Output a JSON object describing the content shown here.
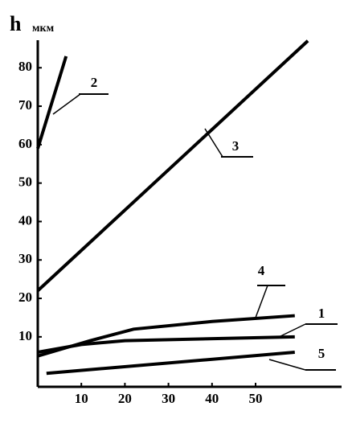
{
  "chart_data": {
    "type": "line",
    "y_label": "h",
    "y_unit": "мкм",
    "xlim": [
      0,
      69
    ],
    "ylim": [
      -3,
      88
    ],
    "xticks": [
      10,
      20,
      30,
      40,
      50
    ],
    "yticks": [
      10,
      20,
      30,
      40,
      50,
      60,
      70,
      80
    ],
    "series": [
      {
        "name": "1",
        "color": "#000000",
        "x": [
          0,
          10,
          20,
          59
        ],
        "values": [
          6,
          8,
          9,
          10
        ]
      },
      {
        "name": "2",
        "color": "#000000",
        "x": [
          0,
          6.5
        ],
        "values": [
          59,
          83
        ]
      },
      {
        "name": "3",
        "color": "#000000",
        "x": [
          0,
          62
        ],
        "values": [
          22,
          87
        ]
      },
      {
        "name": "4",
        "color": "#000000",
        "x": [
          0,
          12,
          22,
          40,
          59
        ],
        "values": [
          5,
          9,
          12,
          14,
          15.5
        ]
      },
      {
        "name": "5",
        "color": "#000000",
        "x": [
          2,
          59
        ],
        "values": [
          0.5,
          6
        ]
      }
    ]
  }
}
